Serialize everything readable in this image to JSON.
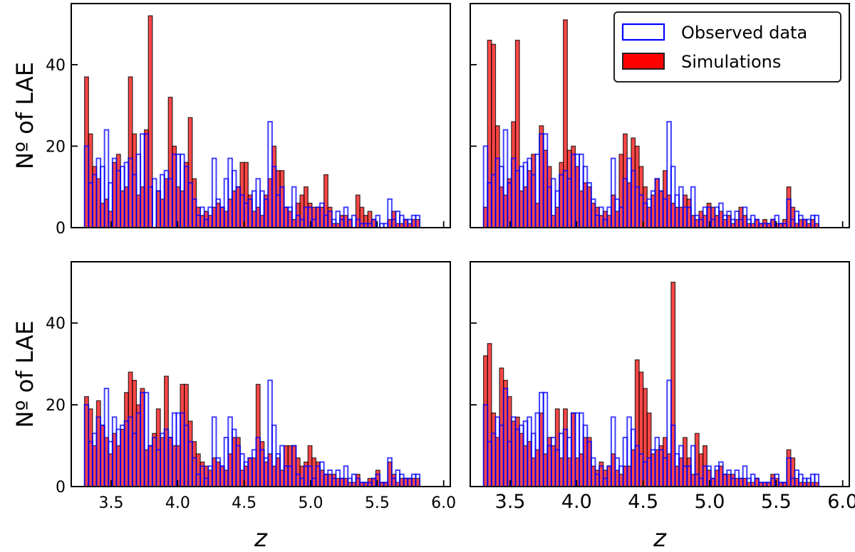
{
  "chart_data": {
    "type": "bar",
    "bin_width": 0.03,
    "x_start": 3.3,
    "xlim": [
      3.2,
      6.05
    ],
    "ylim": [
      0,
      55
    ],
    "xlabel": "z",
    "ylabel": "Nº of LAE",
    "x_ticks": [
      3.5,
      4.0,
      4.5,
      5.0,
      5.5,
      6.0
    ],
    "x_tick_labels": [
      "3.5",
      "4.0",
      "4.5",
      "5.0",
      "5.5",
      "6.0"
    ],
    "y_ticks": [
      0,
      20,
      40
    ],
    "y_tick_labels": [
      "0",
      "20",
      "40"
    ],
    "legend": {
      "position": "top-right",
      "entries": [
        {
          "label": "Observed data",
          "style": "outline",
          "color": "#0000ff"
        },
        {
          "label": "Simulations",
          "style": "filled",
          "color": "#ff0000"
        }
      ]
    },
    "observed": [
      20,
      11,
      13,
      17,
      15,
      24,
      11,
      17,
      14,
      15,
      16,
      17,
      13,
      18,
      23,
      23,
      10,
      12,
      9,
      13,
      14,
      12,
      18,
      18,
      18,
      15,
      11,
      7,
      3,
      5,
      2,
      5,
      17,
      7,
      5,
      12,
      17,
      14,
      10,
      8,
      6,
      7,
      9,
      12,
      9,
      7,
      26,
      15,
      8,
      10,
      5,
      5,
      10,
      3,
      2,
      5,
      5,
      2,
      5,
      6,
      3,
      4,
      2,
      4,
      2,
      5,
      2,
      3,
      2,
      1,
      1,
      1,
      2,
      3,
      1,
      1,
      7,
      2,
      4,
      3,
      2,
      2,
      3,
      3
    ],
    "panels": [
      {
        "name": "panel-top-left",
        "simulations": [
          37,
          23,
          15,
          12,
          6,
          7,
          4,
          16,
          18,
          9,
          10,
          37,
          23,
          8,
          10,
          24,
          52,
          0,
          9,
          7,
          12,
          32,
          20,
          10,
          9,
          16,
          27,
          12,
          5,
          3,
          4,
          3,
          5,
          6,
          5,
          4,
          7,
          9,
          10,
          16,
          16,
          8,
          4,
          5,
          3,
          8,
          12,
          20,
          14,
          14,
          5,
          4,
          2,
          6,
          8,
          10,
          6,
          5,
          5,
          5,
          13,
          5,
          1,
          1,
          3,
          3,
          2,
          0,
          8,
          5,
          3,
          4,
          2,
          0,
          0,
          0,
          2,
          4,
          1,
          1,
          2,
          1,
          2,
          2
        ]
      },
      {
        "name": "panel-top-right",
        "simulations": [
          5,
          46,
          45,
          25,
          10,
          8,
          12,
          26,
          46,
          9,
          10,
          14,
          18,
          6,
          25,
          19,
          15,
          3,
          5,
          16,
          51,
          19,
          20,
          15,
          9,
          11,
          10,
          6,
          5,
          3,
          4,
          3,
          8,
          4,
          18,
          23,
          11,
          22,
          20,
          15,
          10,
          5,
          8,
          12,
          9,
          14,
          8,
          6,
          5,
          5,
          8,
          7,
          3,
          2,
          4,
          3,
          6,
          5,
          3,
          4,
          2,
          3,
          1,
          2,
          5,
          3,
          1,
          1,
          2,
          1,
          2,
          1,
          2,
          1,
          1,
          2,
          10,
          5,
          1,
          2,
          2,
          1,
          2,
          1
        ]
      },
      {
        "name": "panel-bottom-left",
        "simulations": [
          22,
          19,
          10,
          21,
          15,
          12,
          8,
          13,
          10,
          14,
          23,
          28,
          26,
          20,
          24,
          9,
          10,
          13,
          19,
          12,
          27,
          12,
          10,
          10,
          25,
          25,
          16,
          11,
          8,
          6,
          5,
          4,
          7,
          6,
          5,
          4,
          8,
          12,
          12,
          4,
          5,
          7,
          7,
          25,
          11,
          6,
          8,
          5,
          7,
          4,
          10,
          10,
          10,
          7,
          5,
          6,
          10,
          7,
          6,
          4,
          3,
          3,
          3,
          2,
          2,
          2,
          1,
          1,
          3,
          1,
          1,
          2,
          2,
          4,
          1,
          1,
          6,
          3,
          1,
          2,
          2,
          2,
          2,
          2
        ]
      },
      {
        "name": "panel-bottom-right",
        "simulations": [
          32,
          35,
          18,
          12,
          29,
          26,
          22,
          16,
          17,
          13,
          10,
          11,
          7,
          9,
          18,
          8,
          12,
          10,
          19,
          7,
          19,
          7,
          18,
          7,
          8,
          12,
          12,
          5,
          4,
          6,
          4,
          5,
          8,
          4,
          3,
          5,
          5,
          9,
          31,
          28,
          24,
          18,
          8,
          9,
          10,
          12,
          8,
          50,
          5,
          7,
          12,
          7,
          3,
          13,
          8,
          10,
          4,
          2,
          4,
          5,
          3,
          3,
          3,
          2,
          2,
          2,
          1,
          1,
          2,
          1,
          1,
          1,
          3,
          2,
          1,
          1,
          9,
          7,
          2,
          1,
          1,
          1,
          1,
          1
        ]
      }
    ]
  }
}
